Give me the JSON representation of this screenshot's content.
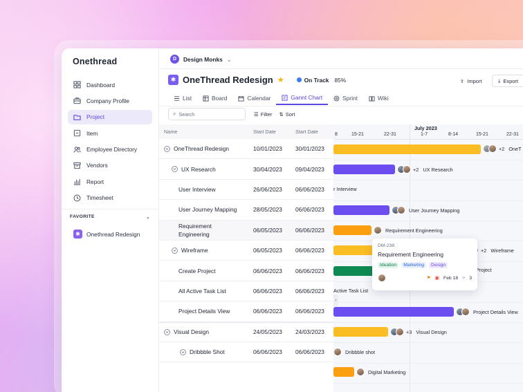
{
  "app": {
    "logo": "Onethread",
    "workspace": "Design Monks",
    "workspace_initial": "D"
  },
  "sidebar": {
    "items": [
      {
        "label": "Dashboard",
        "icon": "dashboard-icon"
      },
      {
        "label": "Company Profile",
        "icon": "briefcase-icon"
      },
      {
        "label": "Project",
        "icon": "folder-icon",
        "active": true
      },
      {
        "label": "Item",
        "icon": "box-icon"
      },
      {
        "label": "Employee Directory",
        "icon": "users-icon"
      },
      {
        "label": "Vendors",
        "icon": "archive-icon"
      },
      {
        "label": "Report",
        "icon": "chart-icon"
      },
      {
        "label": "Timesheet",
        "icon": "clock-icon"
      }
    ],
    "favorite_title": "FAVORITE",
    "favorite_item": "Onethread Redesign"
  },
  "project": {
    "title": "OneThread Redesign",
    "status": "On Track",
    "progress": "85%",
    "import_label": "Import",
    "export_label": "Export"
  },
  "tabs": [
    "List",
    "Board",
    "Calendar",
    "Gannt Chart",
    "Sprint",
    "Wiki"
  ],
  "toolbar": {
    "search_placeholder": "Search",
    "filter_label": "Filter",
    "sort_label": "Sort"
  },
  "table": {
    "headers": {
      "name": "Name",
      "start": "Start Date",
      "due": "Start Date"
    },
    "rows": [
      {
        "name": "OneThread Redesign",
        "start": "10/01/2023",
        "due": "30/01/2023"
      },
      {
        "name": "UX Research",
        "start": "30/04/2023",
        "due": "09/04/2023"
      },
      {
        "name": "User Interview",
        "start": "26/06/2023",
        "due": "06/06/2023"
      },
      {
        "name": "User Journey Mapping",
        "start": "28/05/2023",
        "due": "06/06/2023"
      },
      {
        "name": "Requirement Engineering",
        "start": "06/05/2023",
        "due": "06/06/2023"
      },
      {
        "name": "Wireframe",
        "start": "06/05/2023",
        "due": "06/06/2023"
      },
      {
        "name": "Create Project",
        "start": "06/06/2023",
        "due": "06/06/2023"
      },
      {
        "name": "All Active Task List",
        "start": "06/06/2023",
        "due": "06/06/2023"
      },
      {
        "name": "Project Details View",
        "start": "06/06/2023",
        "due": "06/06/2023"
      },
      {
        "name": "Visual Design",
        "start": "24/05/2023",
        "due": "24/03/2023"
      },
      {
        "name": "Dribbble Shot",
        "start": "06/06/2023",
        "due": "06/06/2023"
      }
    ]
  },
  "gantt": {
    "month": "July 2023",
    "weeks": [
      "8",
      "15-21",
      "22-31",
      "1-7",
      "8-14",
      "15-21",
      "22-31"
    ],
    "labels": {
      "r0_more": "+2",
      "r0_text": "OneT",
      "r1_more": "+2",
      "r1_text": "UX Research",
      "r2_text": "r Interview",
      "r3_text": "User Journey Mapping",
      "r4_text": "Requirement Engineering",
      "r5_more": "+2",
      "r5_text": "Wireframe",
      "r6_text": "Project",
      "r7_text": "Active Task List",
      "r8_text": "Project Details View",
      "r9_more": "+3",
      "r9_text": "Visual Design",
      "r10_text": "Dribbble shot",
      "r11_text": "Digital Marketing"
    }
  },
  "popup": {
    "id": "DM-238",
    "title": "Requirement Engineering",
    "tags": [
      "Ideation",
      "Marketing",
      "Design"
    ],
    "date": "Feb 18",
    "subtasks": "3"
  }
}
